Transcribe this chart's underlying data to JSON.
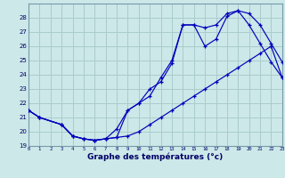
{
  "xlabel": "Graphe des températures (°c)",
  "bg_color": "#cce8e8",
  "grid_color": "#aacccc",
  "line_color": "#0000bb",
  "line1_x": [
    0,
    1,
    3,
    4,
    5,
    6,
    7,
    8,
    9,
    10,
    11,
    12,
    13,
    14,
    15,
    16,
    17,
    18,
    19,
    20,
    21,
    22,
    23
  ],
  "line1_y": [
    21.5,
    21.0,
    20.5,
    19.7,
    19.5,
    19.4,
    19.5,
    19.6,
    19.7,
    20.0,
    20.5,
    21.0,
    21.5,
    22.0,
    22.5,
    23.0,
    23.5,
    24.0,
    24.5,
    25.0,
    25.5,
    26.0,
    23.8
  ],
  "line2_x": [
    0,
    1,
    3,
    4,
    5,
    6,
    7,
    8,
    9,
    10,
    11,
    12,
    13,
    14,
    15,
    16,
    17,
    18,
    19,
    20,
    21,
    22,
    23
  ],
  "line2_y": [
    21.5,
    21.0,
    20.5,
    19.7,
    19.5,
    19.4,
    19.5,
    20.2,
    21.5,
    22.0,
    23.0,
    23.5,
    24.8,
    27.5,
    27.5,
    27.3,
    27.5,
    28.3,
    28.5,
    27.5,
    26.2,
    24.9,
    23.8
  ],
  "line3_x": [
    0,
    1,
    3,
    4,
    5,
    6,
    7,
    8,
    9,
    10,
    11,
    12,
    13,
    14,
    15,
    16,
    17,
    18,
    19,
    20,
    21,
    22,
    23
  ],
  "line3_y": [
    21.5,
    21.0,
    20.5,
    19.7,
    19.5,
    19.4,
    19.5,
    19.6,
    21.5,
    22.0,
    22.5,
    23.8,
    25.0,
    27.5,
    27.5,
    26.0,
    26.5,
    28.1,
    28.5,
    28.3,
    27.5,
    26.2,
    24.9
  ],
  "ylim": [
    19,
    29
  ],
  "yticks": [
    19,
    20,
    21,
    22,
    23,
    24,
    25,
    26,
    27,
    28
  ],
  "xlim": [
    0,
    23
  ],
  "xticks": [
    0,
    1,
    2,
    3,
    4,
    5,
    6,
    7,
    8,
    9,
    10,
    11,
    12,
    13,
    14,
    15,
    16,
    17,
    18,
    19,
    20,
    21,
    22,
    23
  ]
}
